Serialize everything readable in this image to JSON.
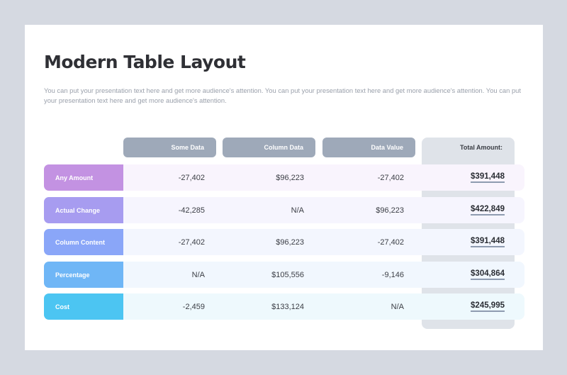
{
  "title": "Modern Table Layout",
  "intro": "You can put your presentation text here and get more audience's attention. You can put your presentation text here and get more audience's attention. You can put your presentation text here and get more audience's attention.",
  "columns": [
    "Some Data",
    "Column Data",
    "Data Value",
    "Total Amount:"
  ],
  "rows": [
    {
      "label": "Any Amount",
      "values": [
        "-27,402",
        "$96,223",
        "-27,402"
      ],
      "total": "$391,448",
      "color": "#c392e2",
      "strip": "#f9f4fd"
    },
    {
      "label": "Actual Change",
      "values": [
        "-42,285",
        "N/A",
        "$96,223"
      ],
      "total": "$422,849",
      "color": "#a79cf0",
      "strip": "#f6f5fe"
    },
    {
      "label": "Column Content",
      "values": [
        "-27,402",
        "$96,223",
        "-27,402"
      ],
      "total": "$391,448",
      "color": "#8aa6f8",
      "strip": "#f3f6fe"
    },
    {
      "label": "Percentage",
      "values": [
        "N/A",
        "$105,556",
        "-9,146"
      ],
      "total": "$304,864",
      "color": "#6fb6f6",
      "strip": "#f1f7fe"
    },
    {
      "label": "Cost",
      "values": [
        "-2,459",
        "$133,124",
        "N/A"
      ],
      "total": "$245,995",
      "color": "#4cc5f2",
      "strip": "#eef9fd"
    }
  ]
}
